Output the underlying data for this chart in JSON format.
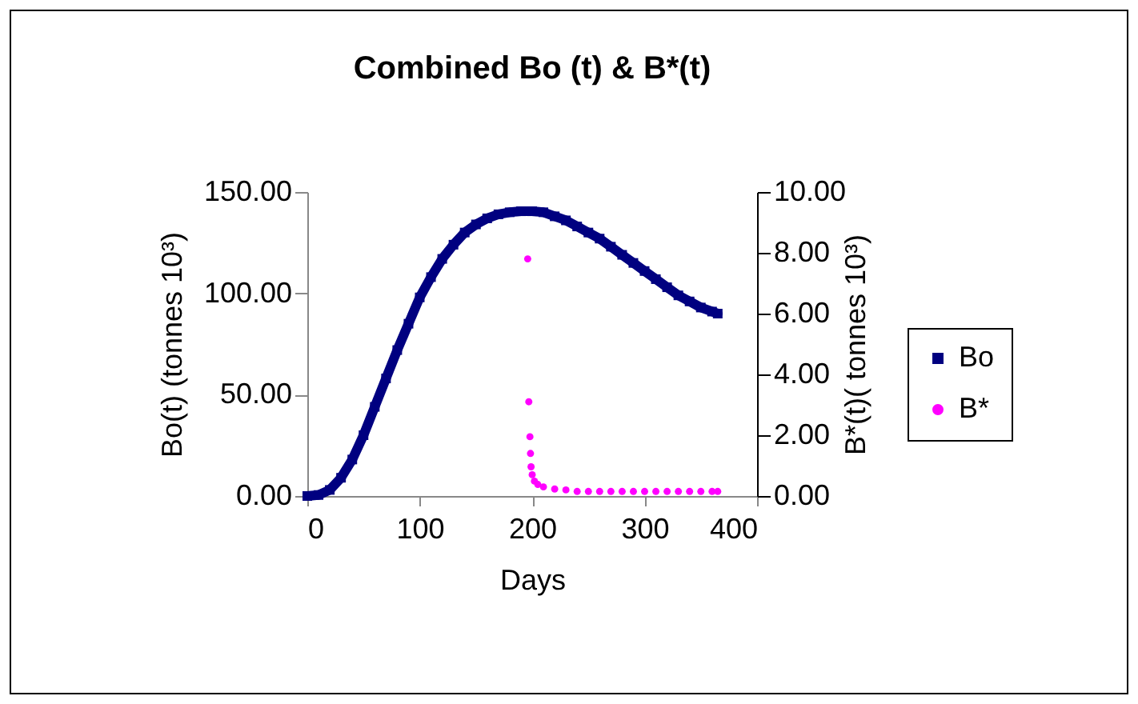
{
  "chart_data": {
    "type": "scatter",
    "title": "Combined Bo (t) & B*(t)",
    "xlabel": "Days",
    "ylabel": "Bo(t) (tonnes 10³)",
    "y2label": "B*(t)( tonnes 10³)",
    "xlim": [
      0,
      400
    ],
    "xticks": [
      0,
      100,
      200,
      300,
      400
    ],
    "ylim": [
      0,
      150
    ],
    "yticks": [
      {
        "value": 0,
        "label": "0.00"
      },
      {
        "value": 50,
        "label": "50.00"
      },
      {
        "value": 100,
        "label": "100.00"
      },
      {
        "value": 150,
        "label": "150.00"
      }
    ],
    "y2lim": [
      0,
      10
    ],
    "y2ticks": [
      {
        "value": 0,
        "label": "0.00"
      },
      {
        "value": 2,
        "label": "2.00"
      },
      {
        "value": 4,
        "label": "4.00"
      },
      {
        "value": 6,
        "label": "6.00"
      },
      {
        "value": 8,
        "label": "8.00"
      },
      {
        "value": 10,
        "label": "10.00"
      }
    ],
    "grid": false,
    "legend": "right",
    "series": [
      {
        "name": "Bo",
        "type": "line",
        "marker": "square",
        "color": "#000080",
        "x": [
          0,
          10,
          20,
          30,
          40,
          50,
          60,
          70,
          80,
          90,
          100,
          110,
          120,
          130,
          140,
          150,
          160,
          170,
          180,
          190,
          200,
          210,
          220,
          230,
          240,
          250,
          260,
          270,
          280,
          290,
          300,
          310,
          320,
          330,
          340,
          350,
          360,
          365
        ],
        "values": [
          0,
          0.5,
          3,
          9,
          18,
          30,
          44,
          58,
          72,
          85,
          98,
          108,
          117,
          124,
          130,
          134,
          137,
          139,
          140,
          140.5,
          140.5,
          140,
          138,
          136,
          133,
          130,
          127,
          123,
          119,
          115,
          111,
          107,
          103,
          99,
          96,
          93,
          91,
          90
        ]
      },
      {
        "name": "B*",
        "type": "scatter",
        "axis": "y2",
        "marker": "circle",
        "color": "#ff00ff",
        "x": [
          196,
          197,
          198,
          198.5,
          199,
          200,
          202,
          205,
          210,
          220,
          230,
          240,
          250,
          260,
          270,
          280,
          290,
          300,
          310,
          320,
          330,
          340,
          350,
          360,
          365
        ],
        "values": [
          7.8,
          3.1,
          1.95,
          1.4,
          0.96,
          0.7,
          0.49,
          0.38,
          0.3,
          0.23,
          0.2,
          0.15,
          0.15,
          0.15,
          0.15,
          0.15,
          0.15,
          0.15,
          0.15,
          0.15,
          0.15,
          0.15,
          0.15,
          0.15,
          0.15
        ]
      }
    ]
  }
}
